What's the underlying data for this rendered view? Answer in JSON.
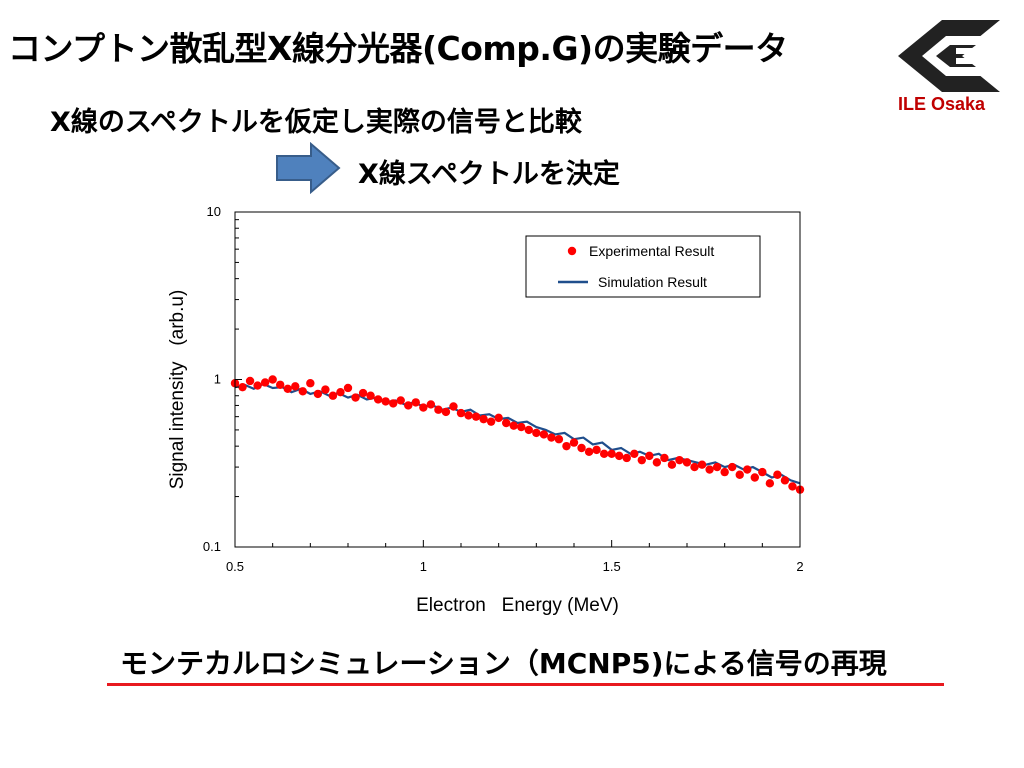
{
  "slide": {
    "title": "コンプトン散乱型X線分光器(Comp.G)の実験データ",
    "subtitle": "X線のスペクトルを仮定し実際の信号と比較",
    "result": "X線スペクトルを決定",
    "bottom_text": "モンテカルロシミュレーション（MCNP5)による信号の再現",
    "logo_text": "ILE Osaka",
    "arrow_icon": "right-arrow-icon",
    "logo_icon": "ile-logo-icon",
    "colors": {
      "arrow_fill": "#4f81bd",
      "arrow_stroke": "#385d8a",
      "logo_text": "#c00000",
      "underline": "#e8191f",
      "experimental": "#ff0000",
      "simulation": "#1f4e8c"
    }
  },
  "chart_data": {
    "type": "scatter",
    "title": "",
    "xlabel": "Electron   Energy (MeV)",
    "ylabel": "Signal intensity   (arb.u)",
    "xlim": [
      0.5,
      2
    ],
    "ylim": [
      0.1,
      10
    ],
    "yscale": "log",
    "xticks": [
      "0.5",
      "1",
      "1.5",
      "2"
    ],
    "yticks": [
      "0.1",
      "1",
      "10"
    ],
    "legend_position": "top-right",
    "grid": false,
    "series": [
      {
        "name": "Experimental Result",
        "kind": "points",
        "x": [
          0.5,
          0.52,
          0.54,
          0.56,
          0.58,
          0.6,
          0.62,
          0.64,
          0.66,
          0.68,
          0.7,
          0.72,
          0.74,
          0.76,
          0.78,
          0.8,
          0.82,
          0.84,
          0.86,
          0.88,
          0.9,
          0.92,
          0.94,
          0.96,
          0.98,
          1.0,
          1.02,
          1.04,
          1.06,
          1.08,
          1.1,
          1.12,
          1.14,
          1.16,
          1.18,
          1.2,
          1.22,
          1.24,
          1.26,
          1.28,
          1.3,
          1.32,
          1.34,
          1.36,
          1.38,
          1.4,
          1.42,
          1.44,
          1.46,
          1.48,
          1.5,
          1.52,
          1.54,
          1.56,
          1.58,
          1.6,
          1.62,
          1.64,
          1.66,
          1.68,
          1.7,
          1.72,
          1.74,
          1.76,
          1.78,
          1.8,
          1.82,
          1.84,
          1.86,
          1.88,
          1.9,
          1.92,
          1.94,
          1.96,
          1.98,
          2.0
        ],
        "y": [
          0.95,
          0.9,
          0.98,
          0.92,
          0.96,
          1.0,
          0.93,
          0.88,
          0.91,
          0.85,
          0.95,
          0.82,
          0.87,
          0.8,
          0.84,
          0.89,
          0.78,
          0.83,
          0.8,
          0.76,
          0.74,
          0.72,
          0.75,
          0.7,
          0.73,
          0.68,
          0.71,
          0.66,
          0.64,
          0.69,
          0.63,
          0.61,
          0.6,
          0.58,
          0.56,
          0.59,
          0.55,
          0.53,
          0.52,
          0.5,
          0.48,
          0.47,
          0.45,
          0.44,
          0.4,
          0.42,
          0.39,
          0.37,
          0.38,
          0.36,
          0.36,
          0.35,
          0.34,
          0.36,
          0.33,
          0.35,
          0.32,
          0.34,
          0.31,
          0.33,
          0.32,
          0.3,
          0.31,
          0.29,
          0.3,
          0.28,
          0.3,
          0.27,
          0.29,
          0.26,
          0.28,
          0.24,
          0.27,
          0.25,
          0.23,
          0.22
        ]
      },
      {
        "name": "Simulation Result",
        "kind": "line",
        "x": [
          0.5,
          0.525,
          0.55,
          0.575,
          0.6,
          0.625,
          0.65,
          0.675,
          0.7,
          0.725,
          0.75,
          0.775,
          0.8,
          0.825,
          0.85,
          0.875,
          0.9,
          0.925,
          0.95,
          0.975,
          1.0,
          1.025,
          1.05,
          1.075,
          1.1,
          1.125,
          1.15,
          1.175,
          1.2,
          1.225,
          1.25,
          1.275,
          1.3,
          1.325,
          1.35,
          1.375,
          1.4,
          1.425,
          1.45,
          1.475,
          1.5,
          1.525,
          1.55,
          1.575,
          1.6,
          1.625,
          1.65,
          1.675,
          1.7,
          1.725,
          1.75,
          1.775,
          1.8,
          1.825,
          1.85,
          1.875,
          1.9,
          1.925,
          1.95,
          1.975,
          2.0
        ],
        "y": [
          0.9,
          0.93,
          0.88,
          0.94,
          0.89,
          0.9,
          0.84,
          0.88,
          0.82,
          0.85,
          0.8,
          0.83,
          0.78,
          0.81,
          0.76,
          0.78,
          0.73,
          0.75,
          0.71,
          0.73,
          0.69,
          0.7,
          0.66,
          0.68,
          0.64,
          0.66,
          0.61,
          0.62,
          0.58,
          0.59,
          0.55,
          0.56,
          0.52,
          0.5,
          0.47,
          0.48,
          0.44,
          0.45,
          0.41,
          0.42,
          0.38,
          0.39,
          0.36,
          0.37,
          0.35,
          0.36,
          0.33,
          0.34,
          0.33,
          0.32,
          0.31,
          0.32,
          0.3,
          0.31,
          0.29,
          0.3,
          0.28,
          0.26,
          0.27,
          0.25,
          0.24
        ]
      }
    ]
  }
}
